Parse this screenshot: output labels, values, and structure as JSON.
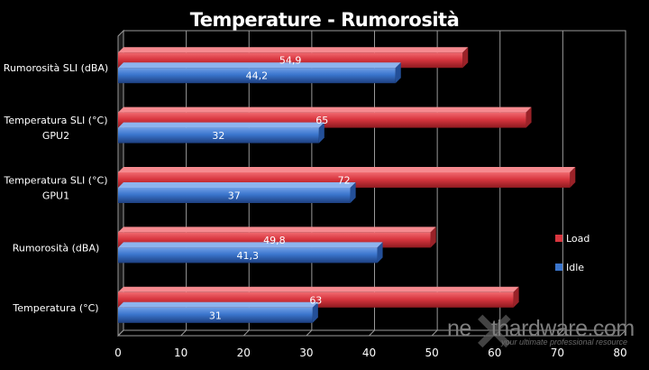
{
  "chart_data": {
    "type": "bar",
    "orientation": "horizontal",
    "title": "Temperature - Rumorosità",
    "categories": [
      [
        "Rumorosità SLI (dBA)"
      ],
      [
        "Temperatura SLI (°C)",
        "GPU2"
      ],
      [
        "Temperatura SLI (°C)",
        "GPU1"
      ],
      [
        "Rumorosità (dBA)"
      ],
      [
        "Temperatura (°C)"
      ]
    ],
    "series": [
      {
        "name": "Load",
        "color": "#d8363f",
        "values": [
          54.9,
          65,
          72,
          49.8,
          63
        ],
        "labels": [
          "54,9",
          "65",
          "72",
          "49,8",
          "63"
        ]
      },
      {
        "name": "Idle",
        "color": "#3a75cc",
        "values": [
          44.2,
          32,
          37,
          41.3,
          31
        ],
        "labels": [
          "44,2",
          "32",
          "37",
          "41,3",
          "31"
        ]
      }
    ],
    "xlim": [
      0,
      80
    ],
    "xticks": [
      0,
      10,
      20,
      30,
      40,
      50,
      60,
      70,
      80
    ],
    "grid": true,
    "legend": "right"
  },
  "watermark": {
    "brand": "nexthardware.com",
    "brand_prefix": "ne",
    "brand_suffix": "thardware.com",
    "slogan": "your ultimate professional resource"
  }
}
